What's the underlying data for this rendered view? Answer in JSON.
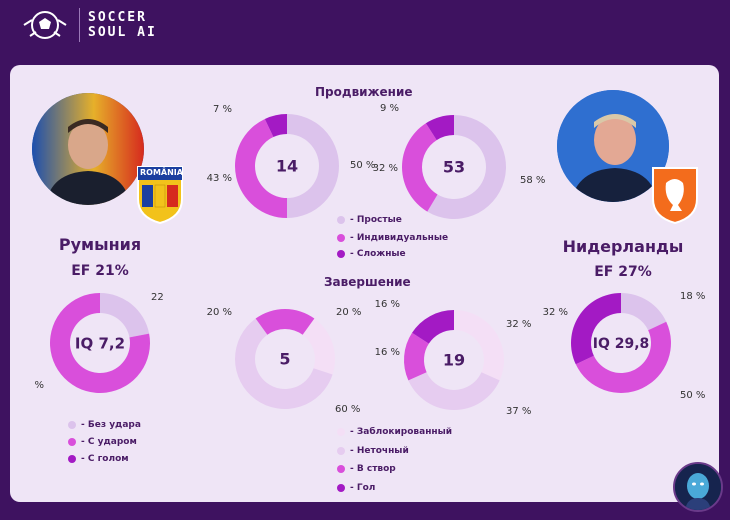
{
  "brand": {
    "line1": "SOCCER",
    "line2": "SOUL AI"
  },
  "colors": {
    "header_bg": "#3e1260",
    "card_bg": "#efe5f6",
    "simple": "#dcc3ec",
    "individual": "#d94fdb",
    "complex": "#a31ac4",
    "light": "#f4dff6",
    "inaccurate": "#e6ccf0",
    "on_target": "#d94fdb",
    "goal": "#a31ac4"
  },
  "teams": {
    "left": {
      "name": "Румыния",
      "ef": "EF  21%",
      "flag_text": "ROMÂNIA"
    },
    "right": {
      "name": "Нидерланды",
      "ef": "EF  27%"
    }
  },
  "sections": {
    "progression": "Продвижение",
    "finishing": "Завершение"
  },
  "progression_legend": [
    "- Простые",
    "- Индивидуальные",
    "- Сложные"
  ],
  "iq_legend": [
    "- Без удара",
    "- С ударом",
    "- С голом"
  ],
  "finishing_legend": [
    "- Заблокированный",
    "- Неточный",
    "- В створ",
    "- Гол"
  ],
  "chart_data": [
    {
      "id": "prog-left",
      "type": "pie",
      "center_label": "14",
      "segments": [
        {
          "name": "- Простые",
          "value": 50,
          "label": "50 %"
        },
        {
          "name": "- Индивидуальные",
          "value": 43,
          "label": "43 %"
        },
        {
          "name": "- Сложные",
          "value": 7,
          "label": "7 %"
        }
      ]
    },
    {
      "id": "prog-right",
      "type": "pie",
      "center_label": "53",
      "segments": [
        {
          "name": "- Простые",
          "value": 58,
          "label": "58 %"
        },
        {
          "name": "- Индивидуальные",
          "value": 32,
          "label": "32 %"
        },
        {
          "name": "- Сложные",
          "value": 9,
          "label": "9 %"
        }
      ]
    },
    {
      "id": "fin-left",
      "type": "pie",
      "center_label": "5",
      "segments": [
        {
          "name": "- Заблокированный",
          "value": 20,
          "label": "20 %"
        },
        {
          "name": "- Неточный",
          "value": 60,
          "label": "60 %"
        },
        {
          "name": "- В створ",
          "value": 20,
          "label": "20 %"
        },
        {
          "name": "- Гол",
          "value": 0,
          "label": ""
        }
      ]
    },
    {
      "id": "fin-right",
      "type": "pie",
      "center_label": "19",
      "segments": [
        {
          "name": "- Заблокированный",
          "value": 32,
          "label": "32 %"
        },
        {
          "name": "- Неточный",
          "value": 37,
          "label": "37 %"
        },
        {
          "name": "- В створ",
          "value": 16,
          "label": "16 %"
        },
        {
          "name": "- Гол",
          "value": 16,
          "label": "16 %"
        }
      ]
    },
    {
      "id": "iq-left",
      "type": "pie",
      "center_label": "IQ 7,2",
      "segments": [
        {
          "name": "- Без удара",
          "value": 22,
          "label": "22"
        },
        {
          "name": "- С ударом",
          "value": 78,
          "label": "%"
        },
        {
          "name": "- С голом",
          "value": 0,
          "label": ""
        }
      ]
    },
    {
      "id": "iq-right",
      "type": "pie",
      "center_label": "IQ 29,8",
      "segments": [
        {
          "name": "- Без удара",
          "value": 18,
          "label": "18 %"
        },
        {
          "name": "- С ударом",
          "value": 50,
          "label": "50 %"
        },
        {
          "name": "- С голом",
          "value": 32,
          "label": "32 %"
        }
      ]
    }
  ]
}
